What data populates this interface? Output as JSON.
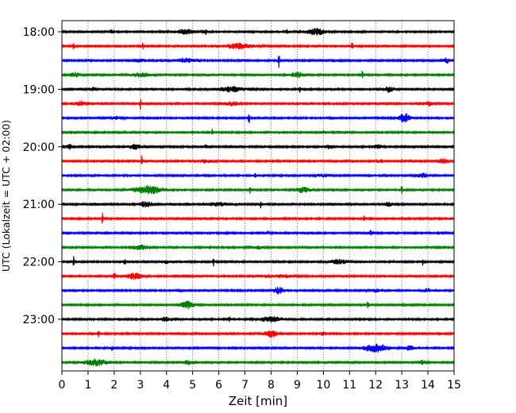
{
  "chart_data": {
    "type": "line",
    "title": "",
    "xlabel": "Zeit  [min]",
    "ylabel": "UTC (Lokalzeit = UTC + 02:00)",
    "xlim": [
      0,
      15
    ],
    "x_ticks": [
      "0",
      "1",
      "2",
      "3",
      "4",
      "5",
      "6",
      "7",
      "8",
      "9",
      "10",
      "11",
      "12",
      "13",
      "14",
      "15"
    ],
    "y_tick_labels": [
      "18:00",
      "19:00",
      "20:00",
      "21:00",
      "22:00",
      "23:00"
    ],
    "grid": "vertical dotted",
    "line_colors": [
      "#000000",
      "#ff0000",
      "#0000ff",
      "#008000"
    ],
    "series": [
      {
        "time": "18:00",
        "color": "#000000",
        "events": [
          [
            1.9,
            0.55,
            0.08
          ],
          [
            4.7,
            0.35,
            1.0
          ],
          [
            5.5,
            0.45,
            0.08
          ],
          [
            8.6,
            0.35,
            0.1
          ],
          [
            9.7,
            0.45,
            1.0
          ]
        ]
      },
      {
        "time": "18:15",
        "color": "#ff0000",
        "events": [
          [
            0.45,
            0.55,
            0.08
          ],
          [
            3.1,
            0.65,
            0.08
          ],
          [
            6.8,
            0.35,
            1.6
          ],
          [
            11.1,
            0.8,
            0.08
          ]
        ]
      },
      {
        "time": "18:30",
        "color": "#0000ff",
        "events": [
          [
            3.0,
            0.2,
            1.0
          ],
          [
            4.7,
            0.3,
            1.0
          ],
          [
            8.3,
            0.95,
            0.08
          ],
          [
            14.7,
            0.35,
            0.4
          ]
        ]
      },
      {
        "time": "18:45",
        "color": "#008000",
        "events": [
          [
            0.5,
            0.3,
            0.5
          ],
          [
            3.0,
            0.25,
            1.2
          ],
          [
            9.0,
            0.35,
            0.8
          ],
          [
            11.5,
            0.9,
            0.08
          ]
        ]
      },
      {
        "time": "19:00",
        "color": "#000000",
        "events": [
          [
            1.2,
            0.3,
            0.2
          ],
          [
            6.5,
            0.35,
            1.5
          ],
          [
            9.1,
            0.4,
            0.08
          ],
          [
            12.5,
            0.35,
            0.6
          ]
        ]
      },
      {
        "time": "19:15",
        "color": "#ff0000",
        "events": [
          [
            0.7,
            0.35,
            0.4
          ],
          [
            3.0,
            0.8,
            0.08
          ],
          [
            6.5,
            0.25,
            0.8
          ],
          [
            14.0,
            0.25,
            0.6
          ]
        ]
      },
      {
        "time": "19:30",
        "color": "#0000ff",
        "events": [
          [
            2.0,
            0.2,
            0.8
          ],
          [
            7.15,
            0.85,
            0.08
          ],
          [
            13.1,
            0.65,
            0.6
          ]
        ]
      },
      {
        "time": "19:45",
        "color": "#008000",
        "events": [
          [
            5.75,
            0.45,
            0.08
          ],
          [
            10.0,
            0.2,
            0.6
          ]
        ]
      },
      {
        "time": "20:00",
        "color": "#000000",
        "events": [
          [
            0.3,
            0.35,
            0.3
          ],
          [
            2.8,
            0.35,
            0.7
          ],
          [
            5.5,
            0.4,
            0.08
          ],
          [
            10.2,
            0.25,
            0.5
          ],
          [
            12.1,
            0.25,
            0.5
          ]
        ]
      },
      {
        "time": "20:15",
        "color": "#ff0000",
        "events": [
          [
            3.05,
            0.85,
            0.08
          ],
          [
            5.5,
            0.2,
            0.8
          ],
          [
            14.6,
            0.3,
            0.6
          ],
          [
            12.2,
            0.2,
            0.3
          ]
        ]
      },
      {
        "time": "20:30",
        "color": "#0000ff",
        "events": [
          [
            7.4,
            0.35,
            0.08
          ],
          [
            10.0,
            0.2,
            0.8
          ],
          [
            13.8,
            0.3,
            0.6
          ]
        ]
      },
      {
        "time": "20:45",
        "color": "#008000",
        "events": [
          [
            3.3,
            0.55,
            1.6
          ],
          [
            7.2,
            0.45,
            0.08
          ],
          [
            9.2,
            0.35,
            0.8
          ],
          [
            13.0,
            0.65,
            0.08
          ]
        ]
      },
      {
        "time": "21:00",
        "color": "#000000",
        "events": [
          [
            3.2,
            0.35,
            0.8
          ],
          [
            6.0,
            0.25,
            1.4
          ],
          [
            7.6,
            0.45,
            0.08
          ],
          [
            12.5,
            0.25,
            0.5
          ]
        ]
      },
      {
        "time": "21:15",
        "color": "#ff0000",
        "events": [
          [
            1.55,
            0.8,
            0.08
          ],
          [
            11.55,
            0.65,
            0.08
          ]
        ]
      },
      {
        "time": "21:30",
        "color": "#0000ff",
        "events": [
          [
            7.9,
            0.3,
            0.1
          ],
          [
            11.8,
            0.35,
            0.3
          ]
        ]
      },
      {
        "time": "21:45",
        "color": "#008000",
        "events": [
          [
            3.0,
            0.3,
            0.9
          ],
          [
            7.5,
            0.2,
            0.5
          ]
        ]
      },
      {
        "time": "22:00",
        "color": "#000000",
        "events": [
          [
            0.45,
            0.95,
            0.08
          ],
          [
            2.4,
            0.35,
            0.2
          ],
          [
            4.0,
            0.3,
            0.3
          ],
          [
            5.8,
            0.6,
            0.08
          ],
          [
            10.6,
            0.3,
            1.0
          ],
          [
            13.8,
            0.5,
            0.08
          ]
        ]
      },
      {
        "time": "22:15",
        "color": "#ff0000",
        "events": [
          [
            2.0,
            0.55,
            0.08
          ],
          [
            2.8,
            0.45,
            0.8
          ],
          [
            8.5,
            0.2,
            1.2
          ]
        ]
      },
      {
        "time": "22:30",
        "color": "#0000ff",
        "events": [
          [
            8.3,
            0.45,
            0.6
          ],
          [
            12.0,
            0.2,
            0.6
          ],
          [
            14.0,
            0.25,
            0.5
          ]
        ]
      },
      {
        "time": "22:45",
        "color": "#008000",
        "events": [
          [
            4.8,
            0.5,
            0.7
          ],
          [
            11.7,
            0.5,
            0.08
          ]
        ]
      },
      {
        "time": "23:00",
        "color": "#000000",
        "events": [
          [
            4.0,
            0.25,
            0.8
          ],
          [
            6.4,
            0.45,
            0.08
          ],
          [
            8.0,
            0.35,
            1.2
          ]
        ]
      },
      {
        "time": "23:15",
        "color": "#ff0000",
        "events": [
          [
            1.4,
            0.55,
            0.08
          ],
          [
            8.0,
            0.45,
            0.7
          ],
          [
            10.0,
            0.2,
            0.5
          ]
        ]
      },
      {
        "time": "23:30",
        "color": "#0000ff",
        "events": [
          [
            1.9,
            0.25,
            0.3
          ],
          [
            12.0,
            0.55,
            1.4
          ],
          [
            13.3,
            0.3,
            0.5
          ]
        ]
      },
      {
        "time": "23:45",
        "color": "#008000",
        "events": [
          [
            1.3,
            0.45,
            1.2
          ],
          [
            4.8,
            0.3,
            0.4
          ],
          [
            13.8,
            0.3,
            0.3
          ]
        ]
      }
    ]
  }
}
